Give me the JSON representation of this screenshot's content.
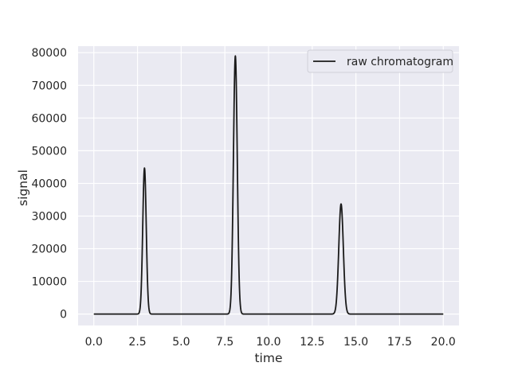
{
  "chart_data": {
    "type": "line",
    "title": "",
    "xlabel": "time",
    "ylabel": "signal",
    "xlim": [
      -0.9,
      20.9
    ],
    "ylim": [
      -3500,
      82000
    ],
    "xticks": [
      0.0,
      2.5,
      5.0,
      7.5,
      10.0,
      12.5,
      15.0,
      17.5,
      20.0
    ],
    "xtick_labels": [
      "0.0",
      "2.5",
      "5.0",
      "7.5",
      "10.0",
      "12.5",
      "15.0",
      "17.5",
      "20.0"
    ],
    "yticks": [
      0,
      10000,
      20000,
      30000,
      40000,
      50000,
      60000,
      70000,
      80000
    ],
    "ytick_labels": [
      "0",
      "10000",
      "20000",
      "30000",
      "40000",
      "50000",
      "60000",
      "70000",
      "80000"
    ],
    "grid": true,
    "legend_position": "upper right",
    "series": [
      {
        "name": "raw chromatogram",
        "color": "#1a1a1a",
        "peaks": [
          {
            "center": 2.9,
            "height": 44700,
            "width": 0.1
          },
          {
            "center": 8.1,
            "height": 79000,
            "width": 0.11
          },
          {
            "center": 14.15,
            "height": 33700,
            "width": 0.13
          }
        ],
        "x_range": [
          0.0,
          20.0
        ],
        "baseline": 0
      }
    ]
  },
  "colors": {
    "plot_background": "#eaeaf2",
    "grid": "#ffffff",
    "line": "#1a1a1a",
    "text": "#262626"
  }
}
